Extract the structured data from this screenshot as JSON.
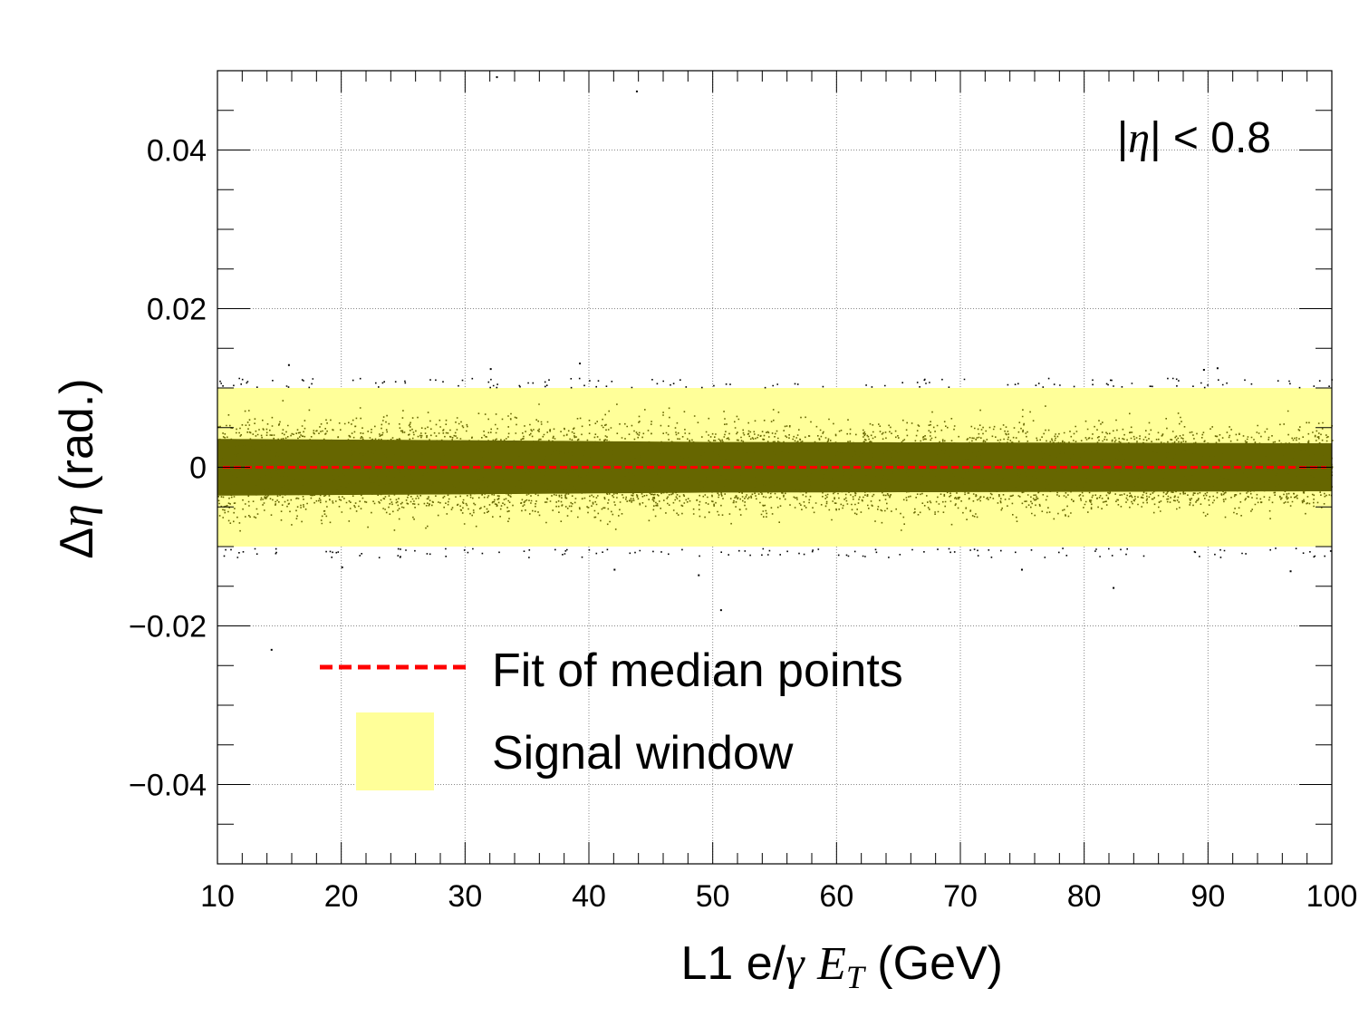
{
  "chart_data": {
    "type": "scatter",
    "xlabel_parts": {
      "pre": "L1 e/",
      "gamma": "γ",
      "E": "E",
      "sub": "T",
      "post": " (GeV)"
    },
    "ylabel_parts": {
      "delta": "Δ",
      "eta": "η",
      "post": " (rad.)"
    },
    "annotation_parts": {
      "bar1": "|",
      "eta": "η",
      "bar2": "|",
      "rest": " < 0.8"
    },
    "xlim": [
      10,
      100
    ],
    "ylim": [
      -0.05,
      0.05
    ],
    "x_ticks": [
      10,
      20,
      30,
      40,
      50,
      60,
      70,
      80,
      90,
      100
    ],
    "y_ticks": [
      -0.04,
      -0.02,
      0,
      0.02,
      0.04
    ],
    "x_tick_labels": [
      "10",
      "20",
      "30",
      "40",
      "50",
      "60",
      "70",
      "80",
      "90",
      "100"
    ],
    "y_tick_labels": [
      "−0.04",
      "−0.02",
      "0",
      "0.02",
      "0.04"
    ],
    "grid": true,
    "signal_window": {
      "y_low": -0.01,
      "y_high": 0.01,
      "color": "#ffff99"
    },
    "median_fit": {
      "y_value": 0.0,
      "color": "#ff0000",
      "style": "dashed"
    },
    "core_cloud": {
      "color": "#666600",
      "width_profile": [
        {
          "x": 10,
          "half_width": 0.0065
        },
        {
          "x": 30,
          "half_width": 0.0062
        },
        {
          "x": 50,
          "half_width": 0.0058
        },
        {
          "x": 70,
          "half_width": 0.0057
        },
        {
          "x": 100,
          "half_width": 0.0055
        }
      ]
    },
    "outliers": [
      {
        "x": 32.5,
        "y": 0.0493
      },
      {
        "x": 43.8,
        "y": 0.0475
      },
      {
        "x": 14.3,
        "y": -0.0229
      },
      {
        "x": 50.6,
        "y": -0.0179
      },
      {
        "x": 82.3,
        "y": -0.0151
      },
      {
        "x": 15.7,
        "y": 0.013
      },
      {
        "x": 39.2,
        "y": 0.0132
      },
      {
        "x": 32.0,
        "y": 0.0125
      },
      {
        "x": 89.6,
        "y": 0.0124
      },
      {
        "x": 90.7,
        "y": 0.0126
      },
      {
        "x": 42.0,
        "y": -0.0128
      },
      {
        "x": 96.6,
        "y": -0.013
      },
      {
        "x": 74.9,
        "y": -0.0128
      },
      {
        "x": 48.8,
        "y": -0.0135
      },
      {
        "x": 20.0,
        "y": -0.0125
      }
    ],
    "legend": [
      {
        "label": "Fit of median points",
        "kind": "dashed-line",
        "color": "#ff0000"
      },
      {
        "label": "Signal window",
        "kind": "box",
        "color": "#ffff99"
      }
    ]
  }
}
